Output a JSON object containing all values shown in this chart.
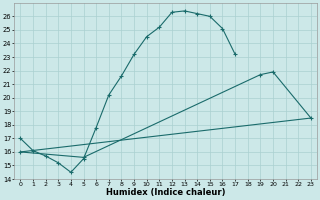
{
  "xlabel": "Humidex (Indice chaleur)",
  "bg_color": "#cce8e8",
  "grid_color": "#aad0d0",
  "line_color": "#1a6b6b",
  "xlim": [
    -0.5,
    23.5
  ],
  "ylim": [
    14,
    27
  ],
  "yticks": [
    14,
    15,
    16,
    17,
    18,
    19,
    20,
    21,
    22,
    23,
    24,
    25,
    26
  ],
  "xticks": [
    0,
    1,
    2,
    3,
    4,
    5,
    6,
    7,
    8,
    9,
    10,
    11,
    12,
    13,
    14,
    15,
    16,
    17,
    18,
    19,
    20,
    21,
    22,
    23
  ],
  "curve1_x": [
    0,
    1,
    2,
    3,
    4,
    5,
    6,
    7,
    8,
    9,
    10,
    11,
    12,
    13,
    14,
    15,
    16,
    17
  ],
  "curve1_y": [
    17.0,
    16.1,
    15.7,
    15.2,
    14.5,
    15.5,
    17.8,
    20.2,
    21.6,
    23.2,
    24.5,
    25.2,
    26.3,
    26.4,
    26.2,
    26.0,
    25.1,
    23.2
  ],
  "curve2_x": [
    0,
    5,
    19,
    20,
    23
  ],
  "curve2_y": [
    16.0,
    15.6,
    21.7,
    21.9,
    18.5
  ],
  "curve3_x": [
    0,
    23
  ],
  "curve3_y": [
    16.0,
    18.5
  ]
}
